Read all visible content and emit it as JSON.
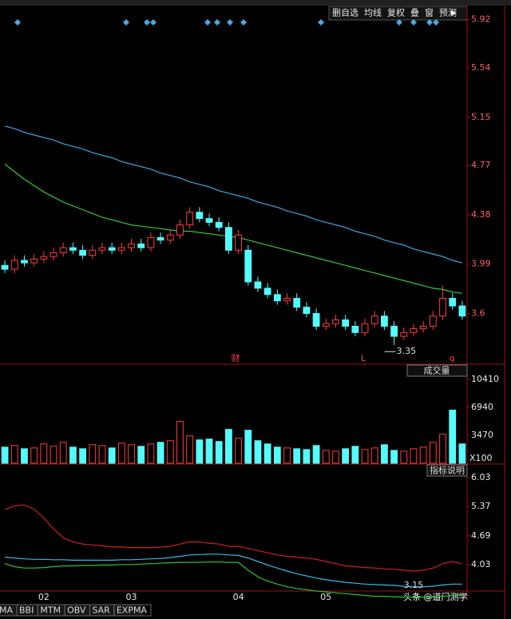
{
  "toolbar": [
    "删自选",
    "均线",
    "复权",
    "叠",
    "窗",
    "预测"
  ],
  "markers": [
    "财",
    "L",
    "q"
  ],
  "panel_labels": [
    "成交量",
    "指标说明"
  ],
  "tabs": [
    "MA",
    "BBI",
    "MTM",
    "OBV",
    "SAR",
    "EXPMA"
  ],
  "watermark": "头条 @道门测学",
  "chart_data": [
    {
      "type": "candlestick",
      "up_color": "#ff3c3c",
      "down_color": "#54fcfc",
      "categories": [
        null,
        null,
        null,
        null,
        "02",
        null,
        null,
        null,
        null,
        null,
        null,
        null,
        null,
        "03",
        null,
        null,
        null,
        null,
        null,
        null,
        null,
        null,
        null,
        null,
        "04",
        null,
        null,
        null,
        null,
        null,
        null,
        null,
        null,
        "05",
        null,
        null,
        null,
        null,
        null,
        null,
        null,
        null,
        null,
        null,
        null,
        null,
        null,
        null
      ],
      "opens": [
        3.98,
        3.95,
        4.02,
        4.0,
        4.03,
        4.05,
        4.08,
        4.12,
        4.1,
        4.06,
        4.1,
        4.12,
        4.1,
        4.12,
        4.15,
        4.12,
        4.2,
        4.18,
        4.22,
        4.3,
        4.4,
        4.35,
        4.32,
        4.28,
        4.1,
        4.1,
        3.85,
        3.8,
        3.75,
        3.7,
        3.72,
        3.65,
        3.6,
        3.5,
        3.52,
        3.55,
        3.5,
        3.45,
        3.52,
        3.58,
        3.5,
        3.42,
        3.45,
        3.48,
        3.5,
        3.58,
        3.72,
        3.66
      ],
      "closes": [
        3.95,
        4.02,
        4.0,
        4.03,
        4.05,
        4.08,
        4.12,
        4.1,
        4.06,
        4.1,
        4.12,
        4.1,
        4.12,
        4.15,
        4.12,
        4.2,
        4.18,
        4.22,
        4.3,
        4.4,
        4.35,
        4.32,
        4.28,
        4.1,
        4.22,
        3.85,
        3.8,
        3.75,
        3.7,
        3.72,
        3.65,
        3.6,
        3.5,
        3.52,
        3.55,
        3.5,
        3.45,
        3.52,
        3.58,
        3.5,
        3.42,
        3.45,
        3.48,
        3.5,
        3.58,
        3.72,
        3.66,
        3.58
      ],
      "highs": [
        4.02,
        4.06,
        4.06,
        4.07,
        4.09,
        4.12,
        4.16,
        4.16,
        4.14,
        4.14,
        4.16,
        4.16,
        4.16,
        4.19,
        4.19,
        4.24,
        4.24,
        4.26,
        4.34,
        4.44,
        4.44,
        4.39,
        4.36,
        4.32,
        4.26,
        4.14,
        3.89,
        3.84,
        3.79,
        3.76,
        3.76,
        3.69,
        3.64,
        3.56,
        3.59,
        3.59,
        3.54,
        3.56,
        3.62,
        3.62,
        3.54,
        3.49,
        3.52,
        3.54,
        3.62,
        3.82,
        3.76,
        3.7
      ],
      "lows": [
        3.92,
        3.92,
        3.97,
        3.97,
        4.0,
        4.02,
        4.05,
        4.07,
        4.03,
        4.03,
        4.07,
        4.07,
        4.07,
        4.09,
        4.09,
        4.09,
        4.15,
        4.15,
        4.19,
        4.27,
        4.32,
        4.29,
        4.25,
        4.07,
        4.07,
        3.82,
        3.77,
        3.72,
        3.67,
        3.67,
        3.62,
        3.57,
        3.47,
        3.47,
        3.49,
        3.47,
        3.42,
        3.42,
        3.49,
        3.47,
        3.35,
        3.39,
        3.42,
        3.45,
        3.47,
        3.55,
        3.63,
        3.55
      ],
      "series": [
        {
          "color": "#3aa8e8",
          "values": [
            5.08,
            5.06,
            5.03,
            5.01,
            4.99,
            4.97,
            4.94,
            4.92,
            4.9,
            4.87,
            4.85,
            4.83,
            4.8,
            4.78,
            4.76,
            4.74,
            4.71,
            4.69,
            4.67,
            4.64,
            4.62,
            4.6,
            4.57,
            4.55,
            4.53,
            4.51,
            4.48,
            4.46,
            4.44,
            4.41,
            4.39,
            4.37,
            4.34,
            4.32,
            4.3,
            4.28,
            4.25,
            4.23,
            4.21,
            4.18,
            4.16,
            4.14,
            4.11,
            4.09,
            4.07,
            4.05,
            4.02,
            4.0
          ]
        },
        {
          "color": "#36c836",
          "values": [
            4.78,
            4.72,
            4.66,
            4.61,
            4.56,
            4.52,
            4.48,
            4.45,
            4.42,
            4.39,
            4.36,
            4.34,
            4.32,
            4.3,
            4.29,
            4.28,
            4.27,
            4.26,
            4.25,
            4.25,
            4.24,
            4.23,
            4.22,
            4.21,
            4.2,
            4.18,
            4.16,
            4.14,
            4.12,
            4.1,
            4.08,
            4.06,
            4.04,
            4.02,
            4.0,
            3.98,
            3.96,
            3.94,
            3.92,
            3.9,
            3.88,
            3.86,
            3.84,
            3.82,
            3.8,
            3.79,
            3.77,
            3.76
          ]
        }
      ],
      "low_label": 3.35,
      "ylim": [
        3.2,
        6.0
      ],
      "yticks": [
        5.92,
        5.54,
        5.15,
        4.77,
        4.38,
        3.99,
        3.6
      ]
    },
    {
      "type": "bar",
      "unit_label": "X100",
      "values": [
        2000,
        2200,
        1800,
        1900,
        2400,
        2100,
        2600,
        2000,
        1800,
        2300,
        2200,
        1900,
        2500,
        2300,
        2100,
        2400,
        2600,
        2800,
        5200,
        3400,
        2900,
        3000,
        2700,
        4200,
        3100,
        4100,
        2800,
        2400,
        2000,
        1900,
        1800,
        1700,
        2200,
        1600,
        1500,
        1800,
        2100,
        1700,
        1900,
        2300,
        1600,
        1500,
        1800,
        2000,
        2600,
        3600,
        6600,
        2400
      ],
      "ylim": [
        0,
        11800
      ],
      "yticks": [
        10410,
        6940,
        3470
      ]
    },
    {
      "type": "line",
      "annotation": 3.15,
      "series": [
        {
          "color": "#d02020",
          "values": [
            5.3,
            5.38,
            5.4,
            5.3,
            5.1,
            4.85,
            4.65,
            4.55,
            4.5,
            4.48,
            4.46,
            4.44,
            4.43,
            4.42,
            4.42,
            4.42,
            4.43,
            4.45,
            4.5,
            4.55,
            4.55,
            4.52,
            4.5,
            4.45,
            4.45,
            4.4,
            4.35,
            4.3,
            4.25,
            4.22,
            4.2,
            4.18,
            4.15,
            4.1,
            4.05,
            4.0,
            3.98,
            3.96,
            3.95,
            3.93,
            3.92,
            3.9,
            3.88,
            3.9,
            3.95,
            4.05,
            4.1,
            4.05
          ]
        },
        {
          "color": "#3ab8e8",
          "values": [
            4.2,
            4.18,
            4.16,
            4.15,
            4.15,
            4.14,
            4.14,
            4.13,
            4.13,
            4.13,
            4.13,
            4.13,
            4.14,
            4.14,
            4.15,
            4.16,
            4.17,
            4.19,
            4.22,
            4.25,
            4.26,
            4.27,
            4.27,
            4.25,
            4.24,
            4.18,
            4.1,
            4.02,
            3.95,
            3.88,
            3.82,
            3.77,
            3.72,
            3.68,
            3.65,
            3.62,
            3.6,
            3.58,
            3.57,
            3.56,
            3.55,
            3.53,
            3.52,
            3.52,
            3.53,
            3.56,
            3.58,
            3.58
          ]
        },
        {
          "color": "#30c030",
          "values": [
            4.05,
            3.98,
            3.95,
            3.95,
            3.96,
            3.98,
            4.0,
            4.0,
            4.01,
            4.01,
            4.02,
            4.02,
            4.03,
            4.03,
            4.04,
            4.05,
            4.06,
            4.07,
            4.08,
            4.08,
            4.08,
            4.09,
            4.09,
            4.08,
            4.08,
            3.9,
            3.75,
            3.65,
            3.58,
            3.52,
            3.48,
            3.45,
            3.42,
            3.4,
            3.38,
            3.36,
            3.34,
            3.32,
            3.3,
            3.3,
            3.29,
            3.28,
            3.28,
            3.28,
            3.28,
            3.3,
            3.32,
            3.34
          ]
        }
      ],
      "ylim": [
        3.2,
        6.2
      ],
      "yticks": [
        6.03,
        5.37,
        4.69,
        4.03
      ]
    }
  ]
}
